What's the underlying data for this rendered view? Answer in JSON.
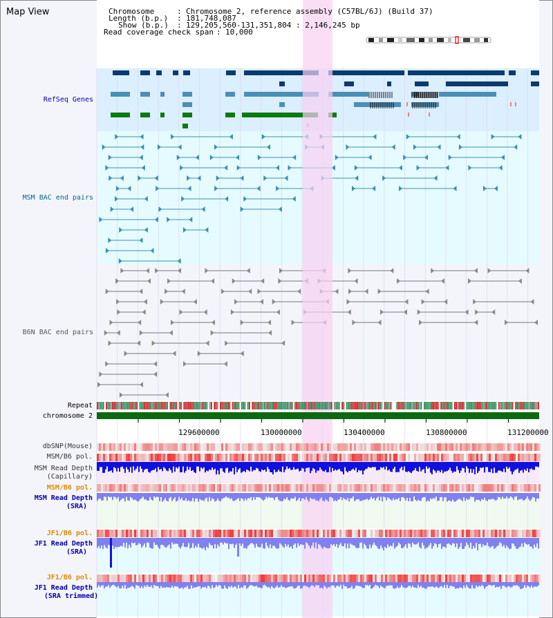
{
  "map_title": "Map View",
  "info": {
    "chromosome_key": "Chromosome",
    "chromosome_val": "Chromosome 2, reference assembly (C57BL/6J) (Build 37)",
    "length_key": "Length (b.p.)",
    "length_val": "181,748,087",
    "show_key": "Show (b.p.)",
    "show_val": "129,205,560-131,351,804 : 2,146,245 bp",
    "coverage_key": "Read coverage check span",
    "coverage_val": "10,000"
  },
  "tracks": {
    "refseq": "RefSeq Genes",
    "msm_bac": "MSM BAC end pairs",
    "b6n_bac": "B6N BAC end pairs",
    "repeat": "Repeat",
    "chromosome": "chromosome 2",
    "dbsnp": "dbSNP(Mouse)",
    "msm_pol": "MSM/B6 pol.",
    "msm_depth_cap_1": "MSM Read Depth",
    "msm_depth_cap_2": "(Capillary)",
    "msm_pol2": "MSM/B6 pol.",
    "msm_depth_sra_1": "MSM Read Depth",
    "msm_depth_sra_2": "(SRA)",
    "jf1_pol": "JF1/B6 pol.",
    "jf1_depth_1": "JF1 Read Depth",
    "jf1_depth_2": "(SRA)",
    "jf1_pol2": "JF1/B6 pol.",
    "jf1_trim_1": "JF1 Read Depth",
    "jf1_trim_2": "(SRA trimmed)"
  },
  "axis_ticks": [
    "129600000",
    "130000000",
    "130400000",
    "130800000",
    "131200000"
  ],
  "colors": {
    "refseq_bg": "#dcefff",
    "msm_bg": "#e6fbff",
    "b6n_bg": "#f3f5fa",
    "highlight": "#f8d0f2",
    "navy": "#0a3a6e",
    "steel": "#4a8fb7",
    "green": "#0b7a10",
    "msm_line": "#3a8fb0",
    "b6n_line": "#777777",
    "depth_dark": "#1111dd",
    "depth_light": "#8080f0",
    "label_blue": "#0000aa",
    "label_orange": "#e08a00",
    "label_msm": "#006688"
  }
}
